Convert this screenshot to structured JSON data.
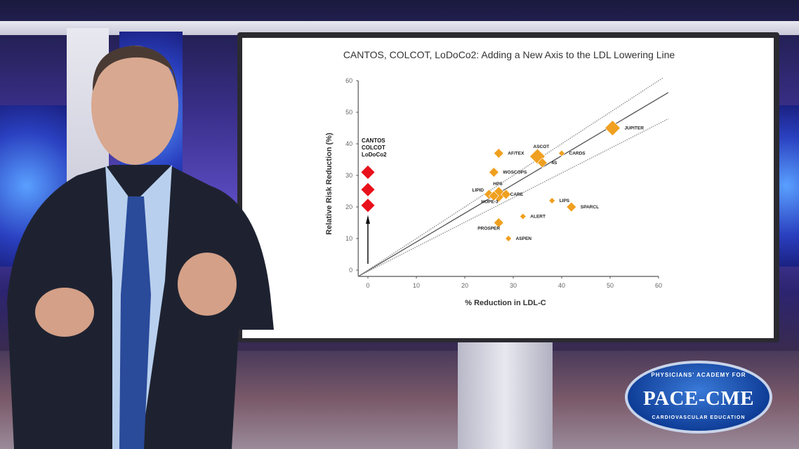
{
  "logo": {
    "top": "PHYSICIANS' ACADEMY FOR",
    "main": "PACE-CME",
    "bottom": "CARDIOVASCULAR EDUCATION"
  },
  "colors": {
    "statin_trials": "#f0a020",
    "anti_inflammatory": "#e8101a",
    "background": "#3a2f8a"
  },
  "chart_data": {
    "type": "scatter",
    "title": "CANTOS, COLCOT, LoDoCo2: Adding a New Axis to the LDL Lowering Line",
    "xlabel": "% Reduction in LDL-C",
    "ylabel": "Relative Risk Reduction (%)",
    "xlim": [
      0,
      60
    ],
    "ylim": [
      0,
      60
    ],
    "xticks": [
      "0",
      "10",
      "20",
      "30",
      "40",
      "50",
      "60"
    ],
    "yticks": [
      "0",
      "10",
      "20",
      "30",
      "40",
      "50",
      "60"
    ],
    "grid": false,
    "annotation": [
      "CANTOS",
      "COLCOT",
      "LoDoCo2"
    ],
    "anti_inflammatory_points": [
      {
        "x": 0,
        "y": 31
      },
      {
        "x": 0,
        "y": 25.5
      },
      {
        "x": 0,
        "y": 20.5
      }
    ],
    "points": [
      {
        "label": "AF/TEX",
        "x": 27,
        "y": 37,
        "marker": "medium"
      },
      {
        "label": "ASCOT",
        "x": 35,
        "y": 36,
        "marker": "large"
      },
      {
        "label": "4S",
        "x": 36,
        "y": 34,
        "marker": "medium"
      },
      {
        "label": "CARDS",
        "x": 40,
        "y": 37,
        "marker": "small"
      },
      {
        "label": "JUPITER",
        "x": 50.5,
        "y": 45,
        "marker": "large"
      },
      {
        "label": "WOSCOPS",
        "x": 26,
        "y": 31,
        "marker": "medium"
      },
      {
        "label": "HPS",
        "x": 27,
        "y": 24,
        "marker": "large"
      },
      {
        "label": "LIPID",
        "x": 25,
        "y": 24,
        "marker": "medium"
      },
      {
        "label": "CARE",
        "x": 28.5,
        "y": 24,
        "marker": "medium"
      },
      {
        "label": "HOPE-3",
        "x": 26,
        "y": 23.5,
        "marker": "medium"
      },
      {
        "label": "LIPS",
        "x": 38,
        "y": 22,
        "marker": "small"
      },
      {
        "label": "SPARCL",
        "x": 42,
        "y": 20,
        "marker": "medium"
      },
      {
        "label": "ALERT",
        "x": 32,
        "y": 17,
        "marker": "small"
      },
      {
        "label": "PROSPER",
        "x": 27,
        "y": 15,
        "marker": "medium"
      },
      {
        "label": "ASPEN",
        "x": 29,
        "y": 10,
        "marker": "small"
      }
    ],
    "lines": [
      {
        "style": "solid",
        "slope": 0.91
      },
      {
        "style": "dotted",
        "slope": 1.0
      },
      {
        "style": "dotted",
        "slope": 0.78
      }
    ]
  }
}
